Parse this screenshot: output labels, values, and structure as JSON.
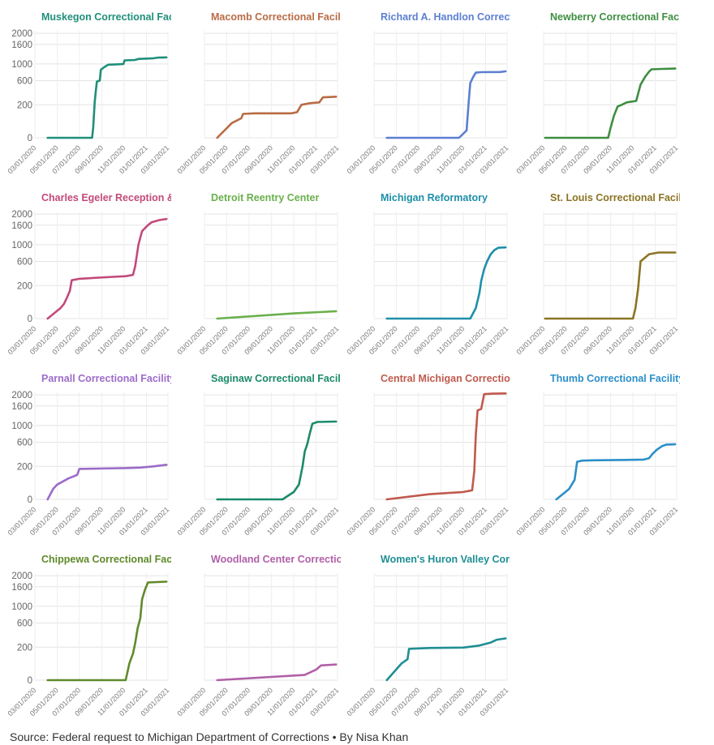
{
  "source": "Source: Federal request to Michigan Department of Corrections • By Nisa Khan",
  "chart_data": {
    "type": "line",
    "layout": "small-multiples",
    "x_ticks": [
      "03/01/2020",
      "05/01/2020",
      "07/01/2020",
      "09/01/2020",
      "11/01/2020",
      "01/01/2021",
      "03/01/2021"
    ],
    "xlim": [
      "03/01/2020",
      "03/01/2021"
    ],
    "y_ticks": [
      0,
      200,
      600,
      1000,
      1600,
      2000
    ],
    "ylim": [
      0,
      2100
    ],
    "y_scale": "sqrt",
    "grid": true,
    "legend": "none",
    "panels": [
      {
        "name": "Muskegon Correctional Facility",
        "color": "#1f8f7a",
        "points": [
          [
            "2020-04-05",
            0
          ],
          [
            "2020-08-05",
            0
          ],
          [
            "2020-08-08",
            20
          ],
          [
            "2020-08-12",
            230
          ],
          [
            "2020-08-15",
            390
          ],
          [
            "2020-08-18",
            580
          ],
          [
            "2020-08-26",
            600
          ],
          [
            "2020-08-29",
            850
          ],
          [
            "2020-09-08",
            920
          ],
          [
            "2020-09-18",
            980
          ],
          [
            "2020-10-10",
            990
          ],
          [
            "2020-10-30",
            1000
          ],
          [
            "2020-11-02",
            1100
          ],
          [
            "2020-11-30",
            1110
          ],
          [
            "2020-12-10",
            1140
          ],
          [
            "2021-01-20",
            1160
          ],
          [
            "2021-02-01",
            1180
          ],
          [
            "2021-02-25",
            1185
          ]
        ]
      },
      {
        "name": "Macomb Correctional Facility",
        "color": "#b86c45",
        "points": [
          [
            "2020-04-05",
            0
          ],
          [
            "2020-05-15",
            40
          ],
          [
            "2020-06-10",
            70
          ],
          [
            "2020-06-15",
            105
          ],
          [
            "2020-07-15",
            110
          ],
          [
            "2020-10-25",
            110
          ],
          [
            "2020-11-10",
            120
          ],
          [
            "2020-11-22",
            200
          ],
          [
            "2020-12-15",
            220
          ],
          [
            "2021-01-10",
            230
          ],
          [
            "2021-01-20",
            300
          ],
          [
            "2021-02-25",
            310
          ]
        ]
      },
      {
        "name": "Richard A. Handlon Correctional Facility",
        "color": "#5b7fd1",
        "points": [
          [
            "2020-04-05",
            0
          ],
          [
            "2020-10-20",
            0
          ],
          [
            "2020-11-10",
            10
          ],
          [
            "2020-11-15",
            200
          ],
          [
            "2020-11-20",
            550
          ],
          [
            "2020-11-28",
            680
          ],
          [
            "2020-12-05",
            780
          ],
          [
            "2020-12-20",
            790
          ],
          [
            "2021-02-10",
            795
          ],
          [
            "2021-02-25",
            810
          ]
        ]
      },
      {
        "name": "Newberry Correctional Facility",
        "color": "#3e8e41",
        "points": [
          [
            "2020-03-05",
            0
          ],
          [
            "2020-08-25",
            0
          ],
          [
            "2020-09-01",
            20
          ],
          [
            "2020-09-10",
            90
          ],
          [
            "2020-09-20",
            180
          ],
          [
            "2020-10-01",
            200
          ],
          [
            "2020-10-15",
            230
          ],
          [
            "2020-11-10",
            250
          ],
          [
            "2020-11-22",
            520
          ],
          [
            "2020-12-05",
            690
          ],
          [
            "2020-12-15",
            800
          ],
          [
            "2020-12-22",
            860
          ],
          [
            "2021-01-20",
            870
          ],
          [
            "2021-02-25",
            880
          ]
        ]
      },
      {
        "name": "Charles Egeler Reception & Guidance Center",
        "color": "#c24a7a",
        "points": [
          [
            "2020-04-05",
            0
          ],
          [
            "2020-05-10",
            20
          ],
          [
            "2020-05-20",
            40
          ],
          [
            "2020-05-28",
            80
          ],
          [
            "2020-06-05",
            140
          ],
          [
            "2020-06-10",
            270
          ],
          [
            "2020-07-01",
            290
          ],
          [
            "2020-08-15",
            305
          ],
          [
            "2020-10-01",
            320
          ],
          [
            "2020-11-05",
            330
          ],
          [
            "2020-11-25",
            350
          ],
          [
            "2020-12-01",
            500
          ],
          [
            "2020-12-10",
            1000
          ],
          [
            "2020-12-15",
            1200
          ],
          [
            "2020-12-20",
            1400
          ],
          [
            "2020-12-28",
            1500
          ],
          [
            "2021-01-05",
            1600
          ],
          [
            "2021-01-15",
            1700
          ],
          [
            "2021-02-05",
            1780
          ],
          [
            "2021-02-25",
            1820
          ]
        ]
      },
      {
        "name": "Detroit Reentry Center",
        "color": "#6ab04c",
        "points": [
          [
            "2020-04-05",
            0
          ],
          [
            "2020-11-01",
            5
          ],
          [
            "2021-02-25",
            10
          ]
        ]
      },
      {
        "name": "Michigan Reformatory",
        "color": "#1e8faa",
        "points": [
          [
            "2020-04-05",
            0
          ],
          [
            "2020-11-20",
            0
          ],
          [
            "2020-12-05",
            20
          ],
          [
            "2020-12-15",
            120
          ],
          [
            "2020-12-20",
            260
          ],
          [
            "2020-12-28",
            450
          ],
          [
            "2021-01-05",
            600
          ],
          [
            "2021-01-15",
            760
          ],
          [
            "2021-01-25",
            860
          ],
          [
            "2021-02-05",
            920
          ],
          [
            "2021-02-25",
            930
          ]
        ]
      },
      {
        "name": "St. Louis Correctional Facility",
        "color": "#8b7424",
        "points": [
          [
            "2020-03-05",
            0
          ],
          [
            "2020-11-01",
            0
          ],
          [
            "2020-11-08",
            20
          ],
          [
            "2020-11-15",
            160
          ],
          [
            "2020-11-22",
            600
          ],
          [
            "2020-12-01",
            660
          ],
          [
            "2020-12-15",
            760
          ],
          [
            "2021-01-10",
            800
          ],
          [
            "2021-02-25",
            800
          ]
        ]
      },
      {
        "name": "Parnall Correctional Facility",
        "color": "#9c6bc9",
        "points": [
          [
            "2020-04-05",
            0
          ],
          [
            "2020-04-20",
            20
          ],
          [
            "2020-05-01",
            40
          ],
          [
            "2020-06-01",
            80
          ],
          [
            "2020-06-25",
            110
          ],
          [
            "2020-07-01",
            170
          ],
          [
            "2020-09-01",
            175
          ],
          [
            "2020-11-01",
            180
          ],
          [
            "2020-12-15",
            185
          ],
          [
            "2021-01-20",
            200
          ],
          [
            "2021-02-25",
            220
          ]
        ]
      },
      {
        "name": "Saginaw Correctional Facility",
        "color": "#1b8a6a",
        "points": [
          [
            "2020-04-05",
            0
          ],
          [
            "2020-10-01",
            0
          ],
          [
            "2020-11-01",
            10
          ],
          [
            "2020-11-15",
            40
          ],
          [
            "2020-11-25",
            200
          ],
          [
            "2020-12-01",
            420
          ],
          [
            "2020-12-08",
            560
          ],
          [
            "2020-12-15",
            800
          ],
          [
            "2020-12-22",
            1050
          ],
          [
            "2021-01-05",
            1100
          ],
          [
            "2021-02-25",
            1110
          ]
        ]
      },
      {
        "name": "Central Michigan Correctional Facility",
        "color": "#c05a4e",
        "points": [
          [
            "2020-04-05",
            0
          ],
          [
            "2020-08-01",
            5
          ],
          [
            "2020-11-01",
            10
          ],
          [
            "2020-11-25",
            15
          ],
          [
            "2020-12-01",
            150
          ],
          [
            "2020-12-05",
            750
          ],
          [
            "2020-12-10",
            1450
          ],
          [
            "2020-12-20",
            1500
          ],
          [
            "2020-12-28",
            2030
          ],
          [
            "2021-01-20",
            2050
          ],
          [
            "2021-02-25",
            2060
          ]
        ]
      },
      {
        "name": "Thumb Correctional Facility",
        "color": "#2b8fc9",
        "points": [
          [
            "2020-04-05",
            0
          ],
          [
            "2020-05-10",
            20
          ],
          [
            "2020-05-25",
            70
          ],
          [
            "2020-06-01",
            260
          ],
          [
            "2020-06-15",
            275
          ],
          [
            "2020-07-15",
            280
          ],
          [
            "2020-10-01",
            285
          ],
          [
            "2020-12-01",
            290
          ],
          [
            "2020-12-15",
            310
          ],
          [
            "2020-12-25",
            380
          ],
          [
            "2021-01-05",
            450
          ],
          [
            "2021-01-20",
            520
          ],
          [
            "2021-02-01",
            550
          ],
          [
            "2021-02-25",
            555
          ]
        ]
      },
      {
        "name": "Chippewa Correctional Facility",
        "color": "#5f8a2a",
        "points": [
          [
            "2020-04-05",
            0
          ],
          [
            "2020-11-05",
            0
          ],
          [
            "2020-11-15",
            50
          ],
          [
            "2020-11-25",
            130
          ],
          [
            "2020-12-01",
            250
          ],
          [
            "2020-12-08",
            500
          ],
          [
            "2020-12-15",
            700
          ],
          [
            "2020-12-20",
            1200
          ],
          [
            "2020-12-28",
            1500
          ],
          [
            "2021-01-05",
            1750
          ],
          [
            "2021-02-25",
            1780
          ]
        ]
      },
      {
        "name": "Woodland Center Correctional Facility",
        "color": "#b060a8",
        "points": [
          [
            "2020-04-05",
            0
          ],
          [
            "2020-12-01",
            5
          ],
          [
            "2021-01-01",
            20
          ],
          [
            "2021-01-15",
            40
          ],
          [
            "2021-02-25",
            45
          ]
        ]
      },
      {
        "name": "Women's Huron Valley Correctional Facility",
        "color": "#1f8f94",
        "points": [
          [
            "2020-04-05",
            0
          ],
          [
            "2020-05-15",
            50
          ],
          [
            "2020-06-01",
            80
          ],
          [
            "2020-06-05",
            180
          ],
          [
            "2020-08-01",
            190
          ],
          [
            "2020-11-01",
            195
          ],
          [
            "2020-12-15",
            220
          ],
          [
            "2021-01-15",
            260
          ],
          [
            "2021-02-01",
            300
          ],
          [
            "2021-02-25",
            320
          ]
        ]
      }
    ]
  }
}
